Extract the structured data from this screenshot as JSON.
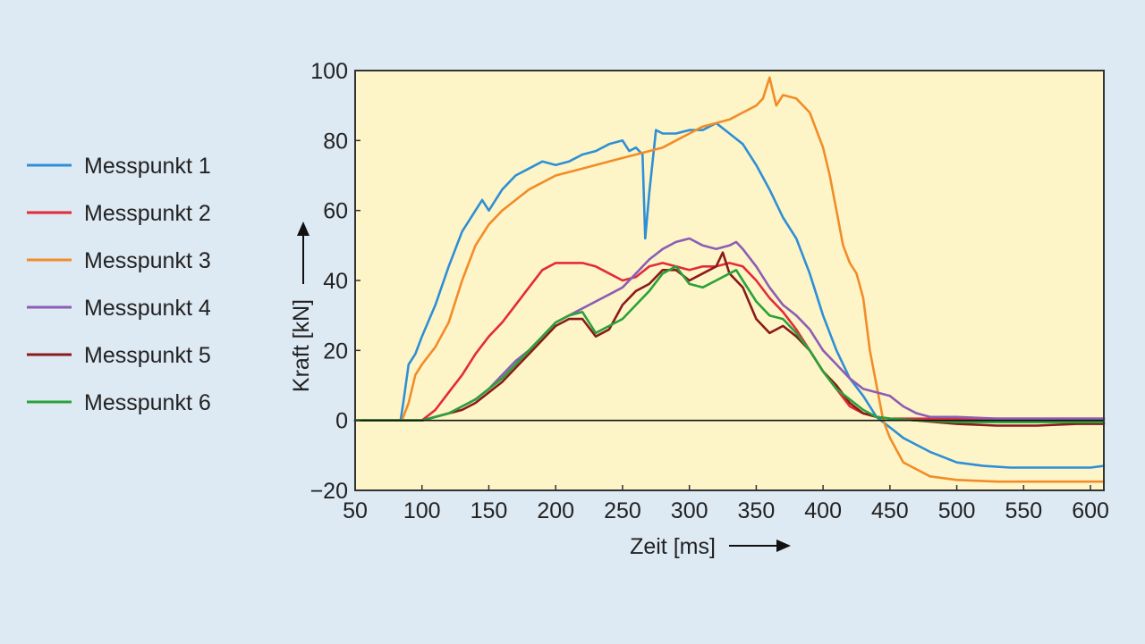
{
  "chart_data": {
    "type": "line",
    "xlabel": "Zeit [ms]",
    "ylabel": "Kraft [kN]",
    "xlim": [
      50,
      610
    ],
    "ylim": [
      -20,
      100
    ],
    "xticks": [
      "50",
      "100",
      "150",
      "200",
      "250",
      "300",
      "350",
      "400",
      "450",
      "500",
      "550",
      "600"
    ],
    "yticks": [
      "100",
      "80",
      "60",
      "40",
      "20",
      "0",
      "−20"
    ],
    "legend_position": "left",
    "grid": false,
    "colors": {
      "background": "#dde9f3",
      "plot_area": "#fdf5c8",
      "axis": "#333333"
    },
    "series": [
      {
        "name": "Messpunkt 1",
        "color": "#2e8fd6",
        "x": [
          50,
          80,
          84,
          86,
          90,
          95,
          100,
          110,
          120,
          130,
          140,
          145,
          150,
          160,
          170,
          180,
          190,
          200,
          210,
          220,
          230,
          240,
          250,
          255,
          260,
          265,
          267,
          270,
          275,
          280,
          290,
          300,
          310,
          320,
          330,
          340,
          350,
          360,
          370,
          380,
          390,
          400,
          410,
          420,
          430,
          440,
          450,
          460,
          480,
          500,
          520,
          540,
          560,
          580,
          600,
          610
        ],
        "y": [
          0,
          0,
          0,
          5,
          16,
          19,
          24,
          33,
          44,
          54,
          60,
          63,
          60,
          66,
          70,
          72,
          74,
          73,
          74,
          76,
          77,
          79,
          80,
          77,
          78,
          76,
          52,
          65,
          83,
          82,
          82,
          83,
          83,
          85,
          82,
          79,
          73,
          66,
          58,
          52,
          42,
          30,
          20,
          12,
          7,
          1,
          -2,
          -5,
          -9,
          -12,
          -13,
          -13.5,
          -13.5,
          -13.5,
          -13.5,
          -13
        ]
      },
      {
        "name": "Messpunkt 2",
        "color": "#e32b3a",
        "x": [
          50,
          90,
          100,
          110,
          120,
          130,
          140,
          150,
          160,
          170,
          180,
          190,
          200,
          210,
          220,
          230,
          240,
          250,
          260,
          270,
          280,
          290,
          300,
          310,
          320,
          330,
          340,
          350,
          360,
          370,
          380,
          390,
          400,
          410,
          420,
          430,
          440,
          450,
          470,
          500,
          530,
          560,
          590,
          610
        ],
        "y": [
          0,
          0,
          0,
          3,
          8,
          13,
          19,
          24,
          28,
          33,
          38,
          43,
          45,
          45,
          45,
          44,
          42,
          40,
          41,
          44,
          45,
          44,
          43,
          44,
          44,
          45,
          44,
          40,
          35,
          31,
          26,
          20,
          14,
          9,
          4,
          2,
          1,
          0.5,
          0.5,
          0.5,
          0.5,
          0.5,
          0.5,
          0.5
        ]
      },
      {
        "name": "Messpunkt 3",
        "color": "#f28c28",
        "x": [
          50,
          85,
          90,
          95,
          100,
          110,
          120,
          130,
          140,
          150,
          160,
          170,
          180,
          190,
          200,
          210,
          220,
          230,
          240,
          250,
          260,
          270,
          280,
          290,
          300,
          310,
          320,
          330,
          340,
          350,
          355,
          360,
          365,
          370,
          380,
          390,
          400,
          405,
          410,
          415,
          420,
          425,
          430,
          435,
          440,
          445,
          450,
          460,
          480,
          500,
          530,
          560,
          590,
          610
        ],
        "y": [
          0,
          0,
          5,
          13,
          16,
          21,
          28,
          40,
          50,
          56,
          60,
          63,
          66,
          68,
          70,
          71,
          72,
          73,
          74,
          75,
          76,
          77,
          78,
          80,
          82,
          84,
          85,
          86,
          88,
          90,
          92,
          98,
          90,
          93,
          92,
          88,
          78,
          70,
          60,
          50,
          45,
          42,
          35,
          20,
          10,
          0,
          -5,
          -12,
          -16,
          -17,
          -17.5,
          -17.5,
          -17.5,
          -17.5
        ]
      },
      {
        "name": "Messpunkt 4",
        "color": "#8c5db5",
        "x": [
          50,
          100,
          110,
          120,
          130,
          140,
          150,
          160,
          170,
          180,
          190,
          200,
          210,
          220,
          230,
          240,
          250,
          260,
          270,
          280,
          290,
          300,
          310,
          320,
          330,
          335,
          340,
          350,
          360,
          370,
          380,
          390,
          400,
          410,
          420,
          430,
          440,
          450,
          460,
          470,
          480,
          500,
          530,
          560,
          590,
          610
        ],
        "y": [
          0,
          0,
          1,
          2,
          4,
          6,
          9,
          13,
          17,
          20,
          24,
          28,
          30,
          32,
          34,
          36,
          38,
          42,
          46,
          49,
          51,
          52,
          50,
          49,
          50,
          51,
          49,
          44,
          38,
          33,
          30,
          26,
          20,
          16,
          12,
          9,
          8,
          7,
          4,
          2,
          1,
          1,
          0.5,
          0.5,
          0.5,
          0.5
        ]
      },
      {
        "name": "Messpunkt 5",
        "color": "#8b1a1a",
        "x": [
          50,
          100,
          110,
          120,
          130,
          140,
          150,
          160,
          170,
          180,
          190,
          200,
          210,
          220,
          230,
          240,
          250,
          260,
          270,
          280,
          290,
          300,
          310,
          320,
          325,
          330,
          340,
          350,
          360,
          370,
          380,
          390,
          400,
          410,
          420,
          430,
          440,
          450,
          470,
          500,
          530,
          560,
          590,
          610
        ],
        "y": [
          0,
          0,
          1,
          2,
          3,
          5,
          8,
          11,
          15,
          19,
          23,
          27,
          29,
          29,
          24,
          26,
          33,
          37,
          39,
          43,
          43,
          40,
          42,
          44,
          48,
          42,
          38,
          29,
          25,
          27,
          24,
          20,
          14,
          10,
          5,
          2,
          1,
          0.5,
          0,
          -1,
          -1.5,
          -1.5,
          -1,
          -1
        ]
      },
      {
        "name": "Messpunkt 6",
        "color": "#2aa23a",
        "x": [
          50,
          100,
          110,
          120,
          130,
          140,
          150,
          160,
          170,
          180,
          190,
          200,
          210,
          220,
          230,
          240,
          250,
          260,
          270,
          280,
          290,
          300,
          310,
          320,
          330,
          335,
          340,
          350,
          360,
          370,
          380,
          390,
          400,
          410,
          420,
          430,
          440,
          450,
          470,
          500,
          530,
          560,
          590,
          610
        ],
        "y": [
          0,
          0,
          1,
          2,
          4,
          6,
          9,
          12,
          16,
          20,
          24,
          28,
          30,
          31,
          25,
          27,
          29,
          33,
          37,
          42,
          44,
          39,
          38,
          40,
          42,
          43,
          40,
          34,
          30,
          29,
          25,
          20,
          14,
          9,
          6,
          3,
          1,
          0.5,
          0,
          -0.5,
          -0.5,
          -0.5,
          -0.5,
          -0.5
        ]
      }
    ]
  }
}
